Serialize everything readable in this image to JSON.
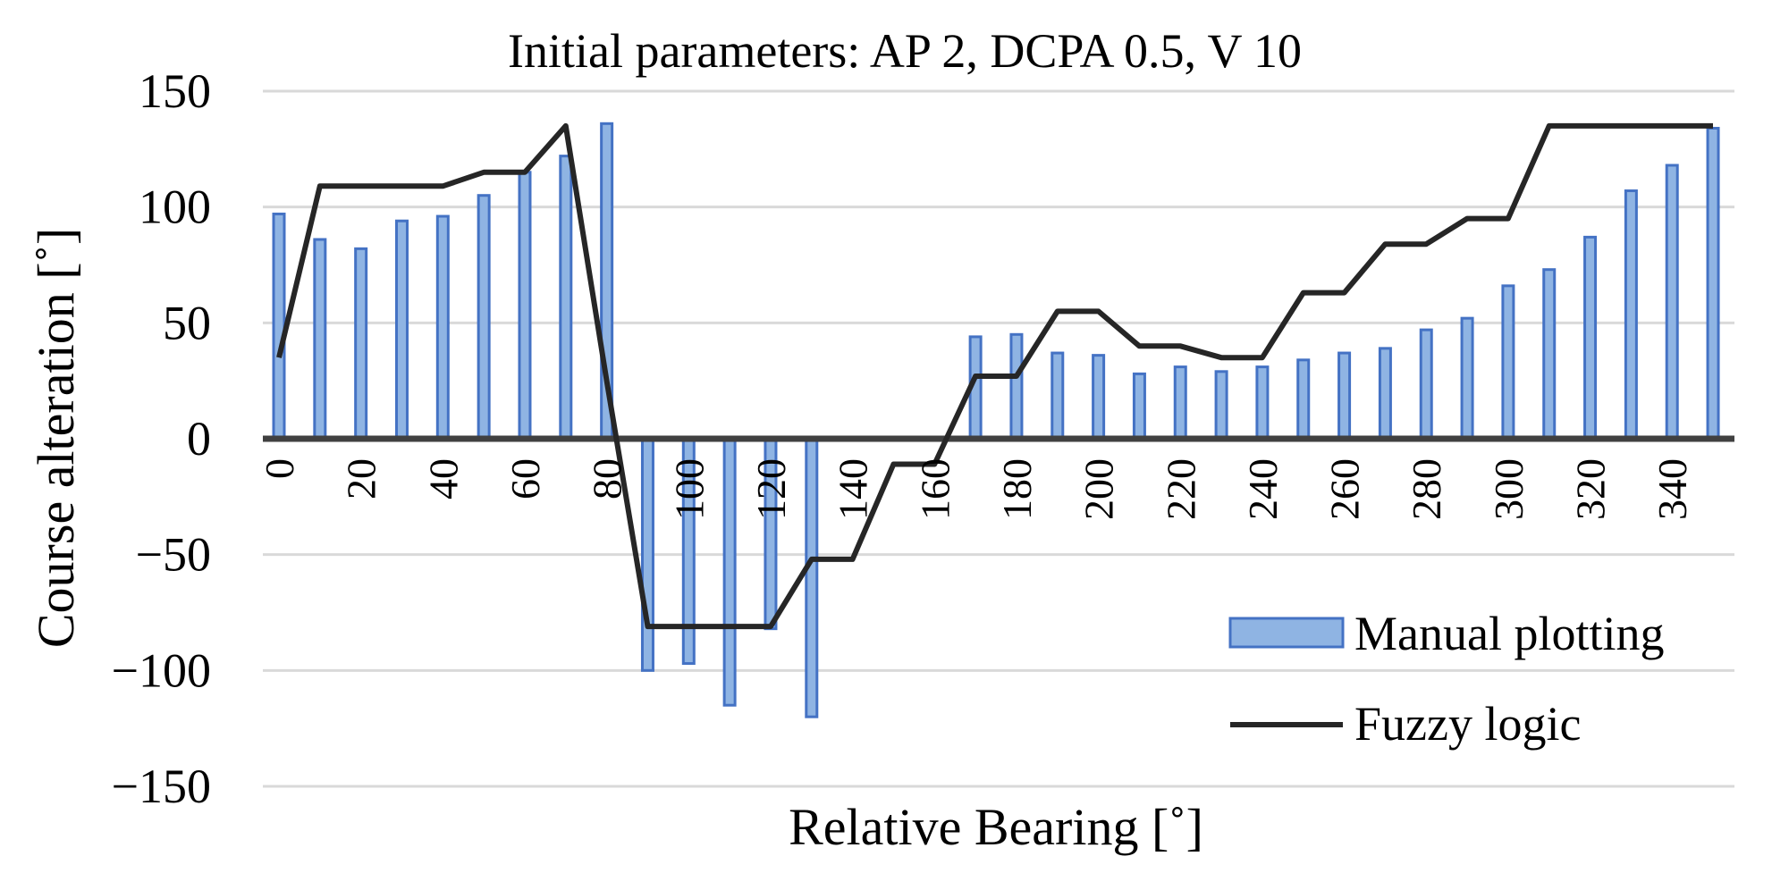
{
  "chart_data": {
    "type": "bar+line",
    "title": "Initial parameters: AP 2, DCPA 0.5, V 10",
    "xlabel": "Relative Bearing [˚]",
    "ylabel": "Course alteration [˚]",
    "ylim": [
      -150,
      150
    ],
    "yticks": [
      150,
      100,
      50,
      0,
      -50,
      -100,
      -150
    ],
    "ytick_labels": [
      "150",
      "100",
      "50",
      "0",
      "−50",
      "−100",
      "−150"
    ],
    "x": [
      0,
      10,
      20,
      30,
      40,
      50,
      60,
      70,
      80,
      90,
      100,
      110,
      120,
      130,
      140,
      150,
      160,
      170,
      180,
      190,
      200,
      210,
      220,
      230,
      240,
      250,
      260,
      270,
      280,
      290,
      300,
      310,
      320,
      330,
      340,
      350
    ],
    "xtick_labels": [
      "0",
      "20",
      "40",
      "60",
      "80",
      "100",
      "120",
      "140",
      "160",
      "180",
      "200",
      "220",
      "240",
      "260",
      "280",
      "300",
      "320",
      "340"
    ],
    "legend_position": "lower-right",
    "series": [
      {
        "name": "Manual plotting",
        "type": "bar",
        "color": "#8fb4e3",
        "edge_color": "#4472c4",
        "values": [
          97,
          86,
          82,
          94,
          96,
          105,
          115,
          122,
          136,
          -100,
          -97,
          -115,
          -82,
          -120,
          null,
          null,
          null,
          44,
          45,
          37,
          36,
          28,
          31,
          29,
          31,
          34,
          37,
          39,
          47,
          52,
          66,
          73,
          87,
          107,
          118,
          134
        ]
      },
      {
        "name": "Fuzzy logic",
        "type": "line",
        "color": "#262626",
        "values": [
          35,
          109,
          109,
          109,
          109,
          115,
          115,
          135,
          25,
          -81,
          -81,
          -81,
          -81,
          -52,
          -52,
          -11,
          -11,
          27,
          27,
          55,
          55,
          40,
          40,
          35,
          35,
          63,
          63,
          84,
          84,
          95,
          95,
          135,
          135,
          135,
          135,
          135
        ]
      }
    ]
  }
}
